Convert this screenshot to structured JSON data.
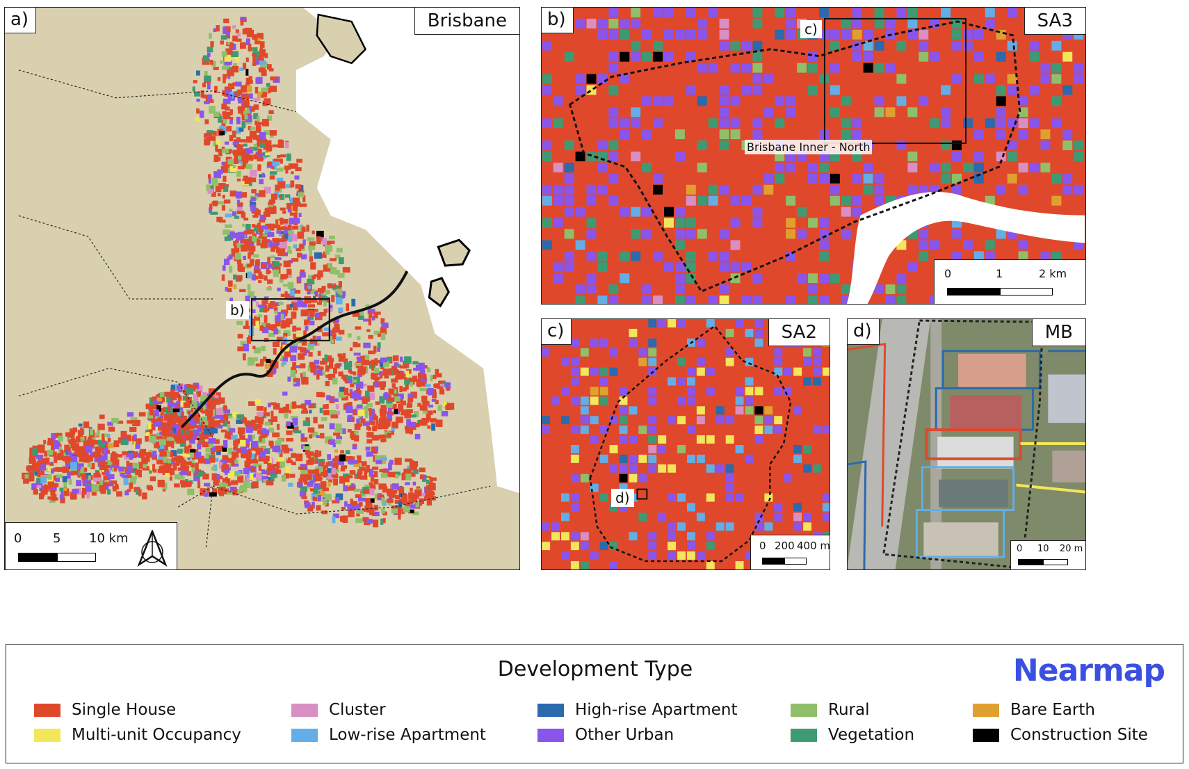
{
  "panels": {
    "a": {
      "label": "a)",
      "title": "Brisbane",
      "scale": {
        "ticks": [
          "0",
          "5",
          "10 km"
        ]
      },
      "inset_label": "b)",
      "north_arrow": "north-arrow-icon"
    },
    "b": {
      "label": "b)",
      "title": "SA3",
      "scale": {
        "ticks": [
          "0",
          "1",
          "2 km"
        ]
      },
      "inset_label": "c)",
      "region_name": "Brisbane Inner - North"
    },
    "c": {
      "label": "c)",
      "title": "SA2",
      "scale": {
        "ticks": [
          "0",
          "200",
          "400 m"
        ]
      },
      "inset_label": "d)"
    },
    "d": {
      "label": "d)",
      "title": "MB",
      "scale": {
        "ticks": [
          "0",
          "10",
          "20 m"
        ]
      }
    }
  },
  "legend": {
    "title": "Development Type",
    "brand": "Nearmap",
    "brand_color": "#3b4fe0",
    "items": [
      {
        "label": "Single House",
        "color": "#e0482c"
      },
      {
        "label": "Multi-unit Occupancy",
        "color": "#f2e65a"
      },
      {
        "label": "Cluster",
        "color": "#d98ec4"
      },
      {
        "label": "Low-rise Apartment",
        "color": "#63aee6"
      },
      {
        "label": "High-rise Apartment",
        "color": "#2a6aad"
      },
      {
        "label": "Other Urban",
        "color": "#8a55ea"
      },
      {
        "label": "Rural",
        "color": "#8fbf6a"
      },
      {
        "label": "Vegetation",
        "color": "#3d9a73"
      },
      {
        "label": "Bare Earth",
        "color": "#e0a030"
      },
      {
        "label": "Construction Site",
        "color": "#000000"
      }
    ]
  },
  "map_colors": {
    "land": "#d9d0b0",
    "water": "#ffffff",
    "road": "#c9c2a8"
  }
}
